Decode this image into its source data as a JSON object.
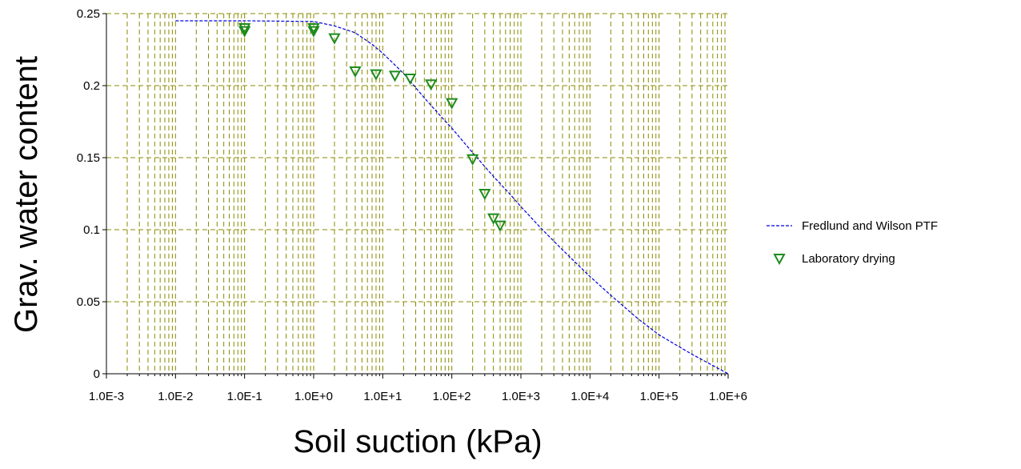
{
  "chart_data": {
    "type": "scatter",
    "title": "",
    "xlabel": "Soil suction (kPa)",
    "ylabel": "Grav. water content",
    "x_scale": "log",
    "xlim": [
      0.001,
      1000000
    ],
    "ylim": [
      0,
      0.25
    ],
    "x_ticks": [
      0.001,
      0.01,
      0.1,
      1,
      10,
      100,
      1000,
      10000,
      100000,
      1000000
    ],
    "x_tick_labels": [
      "1.0E-3",
      "1.0E-2",
      "1.0E-1",
      "1.0E+0",
      "1.0E+1",
      "1.0E+2",
      "1.0E+3",
      "1.0E+4",
      "1.0E+5",
      "1.0E+6"
    ],
    "y_ticks": [
      0,
      0.05,
      0.1,
      0.15,
      0.2,
      0.25
    ],
    "y_tick_labels": [
      "0",
      "0.05",
      "0.1",
      "0.15",
      "0.2",
      "0.25"
    ],
    "grid": true,
    "legend_position": "right",
    "series": [
      {
        "name": "Fredlund and Wilson PTF",
        "kind": "line",
        "style": "dashed",
        "color": "#0000dd",
        "x": [
          0.01,
          0.1,
          0.3,
          1,
          2,
          4,
          7,
          10,
          20,
          40,
          70,
          100,
          200,
          400,
          700,
          1000,
          2000,
          4000,
          10000,
          20000,
          50000,
          100000,
          300000,
          1000000
        ],
        "y": [
          0.245,
          0.245,
          0.2448,
          0.2445,
          0.2415,
          0.2367,
          0.2287,
          0.2225,
          0.2085,
          0.1915,
          0.1785,
          0.1705,
          0.1535,
          0.137,
          0.1245,
          0.116,
          0.1005,
          0.086,
          0.0675,
          0.0545,
          0.038,
          0.027,
          0.0135,
          0
        ]
      },
      {
        "name": "Laboratory drying",
        "kind": "scatter",
        "marker": "triangle-down",
        "color": "#1e8c1e",
        "x": [
          0.1,
          0.1,
          1,
          1,
          2,
          4,
          8,
          15,
          25,
          50,
          100,
          200,
          300,
          400,
          500
        ],
        "y": [
          0.24,
          0.238,
          0.24,
          0.238,
          0.233,
          0.21,
          0.208,
          0.207,
          0.205,
          0.201,
          0.188,
          0.149,
          0.125,
          0.108,
          0.103
        ]
      }
    ]
  }
}
